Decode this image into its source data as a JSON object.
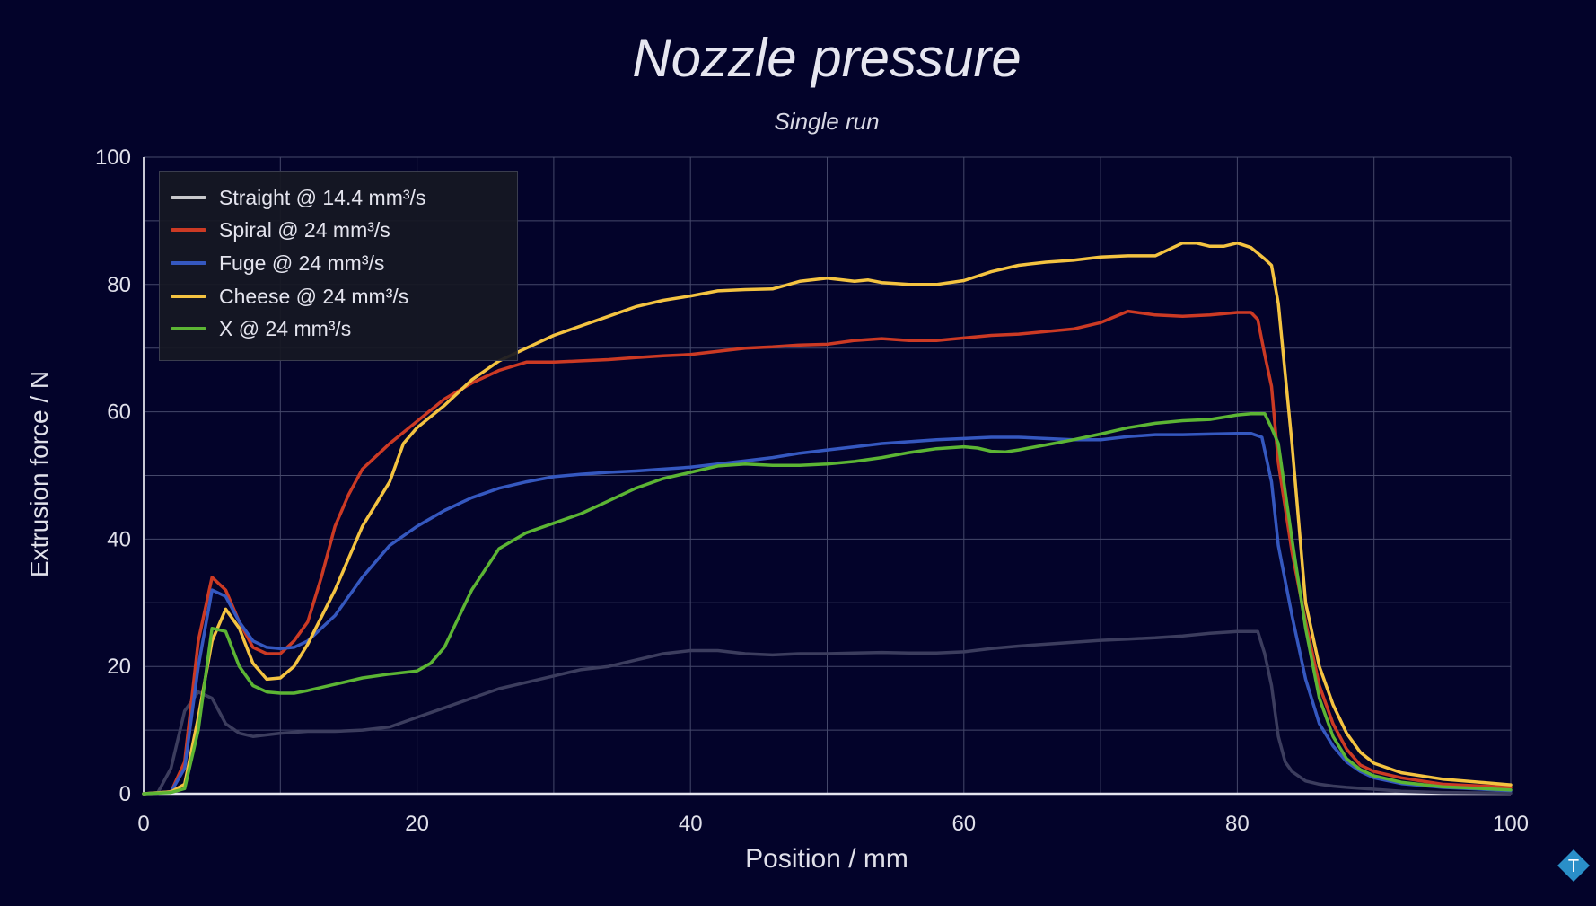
{
  "chart_data": {
    "type": "line",
    "title": "Nozzle pressure",
    "subtitle": "Single run",
    "xlabel": "Position / mm",
    "ylabel": "Extrusion force / N",
    "xlim": [
      0,
      100
    ],
    "ylim": [
      0,
      100
    ],
    "xticks": [
      0,
      20,
      40,
      60,
      80,
      100
    ],
    "yticks": [
      0,
      20,
      40,
      60,
      80,
      100
    ],
    "grid": true,
    "legend_position": "top-left",
    "series": [
      {
        "name": "Straight @ 14.4 mm³/s",
        "color": "#3c3d5e",
        "legend_color": "#c8c8cc",
        "points": [
          [
            0,
            0
          ],
          [
            1,
            0
          ],
          [
            2,
            4
          ],
          [
            3,
            13
          ],
          [
            4,
            16
          ],
          [
            5,
            15
          ],
          [
            6,
            11
          ],
          [
            7,
            9.5
          ],
          [
            8,
            9
          ],
          [
            10,
            9.5
          ],
          [
            12,
            9.8
          ],
          [
            14,
            9.8
          ],
          [
            16,
            10
          ],
          [
            18,
            10.5
          ],
          [
            20,
            12
          ],
          [
            22,
            13.5
          ],
          [
            24,
            15
          ],
          [
            26,
            16.5
          ],
          [
            28,
            17.5
          ],
          [
            30,
            18.5
          ],
          [
            32,
            19.5
          ],
          [
            34,
            20
          ],
          [
            36,
            21
          ],
          [
            38,
            22
          ],
          [
            40,
            22.5
          ],
          [
            42,
            22.5
          ],
          [
            44,
            22
          ],
          [
            46,
            21.8
          ],
          [
            48,
            22
          ],
          [
            50,
            22
          ],
          [
            52,
            22.1
          ],
          [
            54,
            22.2
          ],
          [
            56,
            22.1
          ],
          [
            58,
            22.1
          ],
          [
            60,
            22.3
          ],
          [
            62,
            22.8
          ],
          [
            64,
            23.2
          ],
          [
            66,
            23.5
          ],
          [
            68,
            23.8
          ],
          [
            70,
            24.1
          ],
          [
            72,
            24.3
          ],
          [
            74,
            24.5
          ],
          [
            76,
            24.8
          ],
          [
            78,
            25.2
          ],
          [
            80,
            25.5
          ],
          [
            81.5,
            25.5
          ],
          [
            82,
            22
          ],
          [
            82.5,
            17
          ],
          [
            83,
            9
          ],
          [
            83.5,
            5
          ],
          [
            84,
            3.5
          ],
          [
            85,
            2
          ],
          [
            86,
            1.5
          ],
          [
            87,
            1.2
          ],
          [
            88,
            1
          ],
          [
            90,
            0.7
          ],
          [
            92,
            0.4
          ],
          [
            95,
            0.2
          ],
          [
            100,
            0.1
          ]
        ]
      },
      {
        "name": "Spiral @ 24 mm³/s",
        "color": "#cc3a24",
        "points": [
          [
            0,
            0
          ],
          [
            2,
            0.3
          ],
          [
            3,
            5
          ],
          [
            4,
            24
          ],
          [
            5,
            34
          ],
          [
            6,
            32
          ],
          [
            7,
            27
          ],
          [
            8,
            23
          ],
          [
            9,
            22
          ],
          [
            10,
            22
          ],
          [
            11,
            24
          ],
          [
            12,
            27
          ],
          [
            13,
            34
          ],
          [
            14,
            42
          ],
          [
            15,
            47
          ],
          [
            16,
            51
          ],
          [
            18,
            55
          ],
          [
            20,
            58.5
          ],
          [
            22,
            62
          ],
          [
            24,
            64.5
          ],
          [
            26,
            66.5
          ],
          [
            28,
            67.8
          ],
          [
            30,
            67.8
          ],
          [
            32,
            68
          ],
          [
            34,
            68.2
          ],
          [
            36,
            68.5
          ],
          [
            38,
            68.8
          ],
          [
            40,
            69
          ],
          [
            42,
            69.5
          ],
          [
            44,
            70
          ],
          [
            46,
            70.2
          ],
          [
            48,
            70.5
          ],
          [
            50,
            70.6
          ],
          [
            52,
            71.2
          ],
          [
            54,
            71.5
          ],
          [
            56,
            71.2
          ],
          [
            58,
            71.2
          ],
          [
            60,
            71.6
          ],
          [
            62,
            72
          ],
          [
            64,
            72.2
          ],
          [
            66,
            72.6
          ],
          [
            68,
            73
          ],
          [
            70,
            74
          ],
          [
            72,
            75.8
          ],
          [
            74,
            75.2
          ],
          [
            76,
            75
          ],
          [
            78,
            75.2
          ],
          [
            80,
            75.6
          ],
          [
            81,
            75.6
          ],
          [
            81.5,
            74.5
          ],
          [
            82,
            69
          ],
          [
            82.5,
            64
          ],
          [
            83,
            52
          ],
          [
            84,
            38
          ],
          [
            85,
            27
          ],
          [
            86,
            17
          ],
          [
            87,
            11
          ],
          [
            88,
            7
          ],
          [
            89,
            4.5
          ],
          [
            90,
            3.5
          ],
          [
            92,
            2.5
          ],
          [
            95,
            1.5
          ],
          [
            100,
            1
          ]
        ]
      },
      {
        "name": "Fuge @ 24 mm³/s",
        "color": "#3558c0",
        "points": [
          [
            0,
            0
          ],
          [
            2,
            0.3
          ],
          [
            3,
            4
          ],
          [
            4,
            20
          ],
          [
            5,
            32
          ],
          [
            6,
            31
          ],
          [
            7,
            27
          ],
          [
            8,
            24
          ],
          [
            9,
            23
          ],
          [
            10,
            22.8
          ],
          [
            11,
            23
          ],
          [
            12,
            24
          ],
          [
            14,
            28
          ],
          [
            16,
            34
          ],
          [
            18,
            39
          ],
          [
            20,
            42
          ],
          [
            22,
            44.5
          ],
          [
            24,
            46.5
          ],
          [
            26,
            48
          ],
          [
            28,
            49
          ],
          [
            30,
            49.8
          ],
          [
            32,
            50.2
          ],
          [
            34,
            50.5
          ],
          [
            36,
            50.7
          ],
          [
            38,
            51
          ],
          [
            40,
            51.3
          ],
          [
            42,
            51.8
          ],
          [
            44,
            52.3
          ],
          [
            46,
            52.8
          ],
          [
            48,
            53.5
          ],
          [
            50,
            54
          ],
          [
            52,
            54.5
          ],
          [
            54,
            55
          ],
          [
            56,
            55.3
          ],
          [
            58,
            55.6
          ],
          [
            60,
            55.8
          ],
          [
            62,
            56
          ],
          [
            64,
            56
          ],
          [
            66,
            55.8
          ],
          [
            68,
            55.6
          ],
          [
            70,
            55.6
          ],
          [
            72,
            56.1
          ],
          [
            74,
            56.4
          ],
          [
            76,
            56.4
          ],
          [
            78,
            56.5
          ],
          [
            80,
            56.6
          ],
          [
            81,
            56.6
          ],
          [
            81.8,
            56
          ],
          [
            82.5,
            49
          ],
          [
            83,
            39
          ],
          [
            84,
            28
          ],
          [
            85,
            18
          ],
          [
            86,
            11
          ],
          [
            87,
            7.5
          ],
          [
            88,
            5
          ],
          [
            89,
            3.5
          ],
          [
            90,
            2.5
          ],
          [
            92,
            1.6
          ],
          [
            95,
            1
          ],
          [
            100,
            0.5
          ]
        ]
      },
      {
        "name": "Cheese @ 24 mm³/s",
        "color": "#f4c341",
        "points": [
          [
            0,
            0
          ],
          [
            2,
            0.3
          ],
          [
            3,
            1.5
          ],
          [
            4,
            12
          ],
          [
            5,
            24
          ],
          [
            6,
            29
          ],
          [
            7,
            26
          ],
          [
            8,
            20.5
          ],
          [
            9,
            18
          ],
          [
            10,
            18.2
          ],
          [
            11,
            20
          ],
          [
            12,
            23.5
          ],
          [
            14,
            32
          ],
          [
            16,
            42
          ],
          [
            18,
            49
          ],
          [
            19,
            55
          ],
          [
            20,
            57.5
          ],
          [
            22,
            61
          ],
          [
            24,
            65
          ],
          [
            26,
            68
          ],
          [
            28,
            70
          ],
          [
            30,
            72
          ],
          [
            32,
            73.5
          ],
          [
            34,
            75
          ],
          [
            36,
            76.5
          ],
          [
            38,
            77.5
          ],
          [
            40,
            78.2
          ],
          [
            42,
            79
          ],
          [
            44,
            79.2
          ],
          [
            46,
            79.3
          ],
          [
            48,
            80.5
          ],
          [
            50,
            81
          ],
          [
            52,
            80.5
          ],
          [
            53,
            80.7
          ],
          [
            54,
            80.3
          ],
          [
            56,
            80
          ],
          [
            58,
            80
          ],
          [
            60,
            80.6
          ],
          [
            62,
            82
          ],
          [
            64,
            83
          ],
          [
            66,
            83.5
          ],
          [
            68,
            83.8
          ],
          [
            70,
            84.3
          ],
          [
            72,
            84.5
          ],
          [
            74,
            84.5
          ],
          [
            76,
            86.5
          ],
          [
            77,
            86.5
          ],
          [
            78,
            86
          ],
          [
            79,
            86
          ],
          [
            80,
            86.5
          ],
          [
            81,
            85.8
          ],
          [
            82,
            84
          ],
          [
            82.5,
            83
          ],
          [
            83,
            77
          ],
          [
            84,
            55
          ],
          [
            85,
            30
          ],
          [
            86,
            20
          ],
          [
            87,
            14
          ],
          [
            88,
            9.5
          ],
          [
            89,
            6.5
          ],
          [
            90,
            4.8
          ],
          [
            92,
            3.3
          ],
          [
            95,
            2.3
          ],
          [
            100,
            1.4
          ]
        ]
      },
      {
        "name": "X @ 24 mm³/s",
        "color": "#5cb534",
        "points": [
          [
            0,
            0
          ],
          [
            2,
            0.2
          ],
          [
            3,
            0.8
          ],
          [
            4,
            10
          ],
          [
            5,
            26
          ],
          [
            6,
            25.5
          ],
          [
            7,
            20
          ],
          [
            8,
            17
          ],
          [
            9,
            16
          ],
          [
            10,
            15.8
          ],
          [
            11,
            15.8
          ],
          [
            12,
            16.2
          ],
          [
            14,
            17.2
          ],
          [
            16,
            18.2
          ],
          [
            18,
            18.8
          ],
          [
            20,
            19.3
          ],
          [
            21,
            20.5
          ],
          [
            22,
            23
          ],
          [
            24,
            32
          ],
          [
            26,
            38.5
          ],
          [
            28,
            41
          ],
          [
            30,
            42.5
          ],
          [
            32,
            44
          ],
          [
            34,
            46
          ],
          [
            36,
            48
          ],
          [
            38,
            49.5
          ],
          [
            40,
            50.5
          ],
          [
            42,
            51.5
          ],
          [
            44,
            51.8
          ],
          [
            46,
            51.6
          ],
          [
            48,
            51.6
          ],
          [
            50,
            51.8
          ],
          [
            52,
            52.2
          ],
          [
            54,
            52.8
          ],
          [
            56,
            53.6
          ],
          [
            58,
            54.2
          ],
          [
            60,
            54.5
          ],
          [
            61,
            54.3
          ],
          [
            62,
            53.8
          ],
          [
            63,
            53.7
          ],
          [
            64,
            54
          ],
          [
            66,
            54.8
          ],
          [
            68,
            55.6
          ],
          [
            70,
            56.5
          ],
          [
            72,
            57.5
          ],
          [
            74,
            58.2
          ],
          [
            76,
            58.6
          ],
          [
            78,
            58.8
          ],
          [
            80,
            59.5
          ],
          [
            81,
            59.7
          ],
          [
            82,
            59.7
          ],
          [
            82.5,
            57.5
          ],
          [
            83,
            55
          ],
          [
            84,
            40
          ],
          [
            85,
            26
          ],
          [
            86,
            15
          ],
          [
            87,
            9
          ],
          [
            88,
            5.5
          ],
          [
            89,
            3.8
          ],
          [
            90,
            2.8
          ],
          [
            92,
            1.8
          ],
          [
            95,
            1.1
          ],
          [
            100,
            0.6
          ]
        ]
      }
    ]
  },
  "legend_items": [
    {
      "name": "Straight @ 14.4 mm³/s"
    },
    {
      "name": "Spiral @ 24 mm³/s"
    },
    {
      "name": "Fuge @ 24 mm³/s"
    },
    {
      "name": "Cheese @ 24 mm³/s"
    },
    {
      "name": "X @ 24 mm³/s"
    }
  ],
  "logo": {
    "letter": "T",
    "color": "#2a8fc8"
  }
}
